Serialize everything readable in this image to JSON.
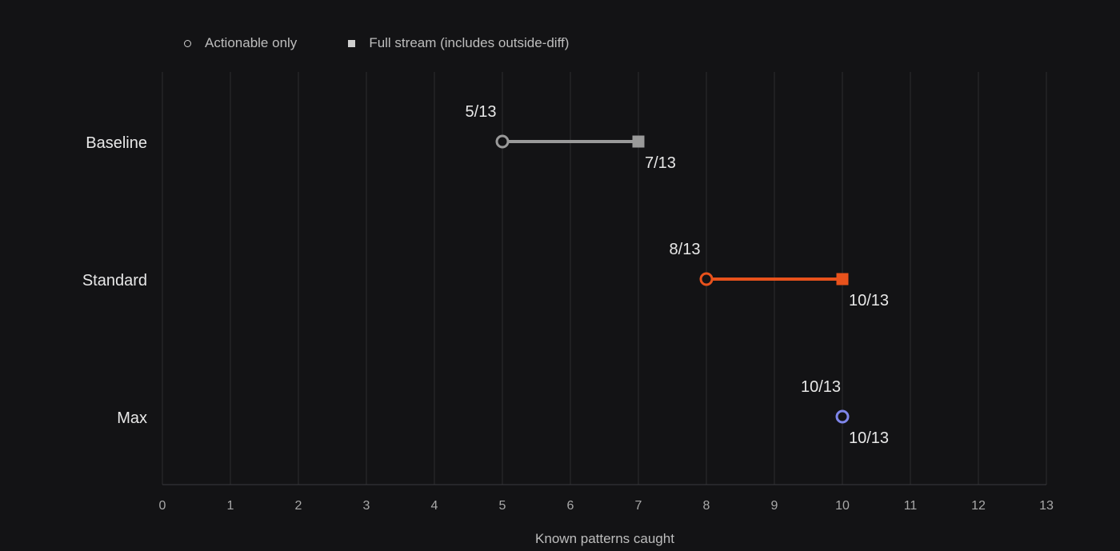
{
  "legend": {
    "actionable": "Actionable only",
    "full_stream": "Full stream (includes outside-diff)"
  },
  "chart_data": {
    "type": "dumbbell",
    "xlabel": "Known patterns caught",
    "xlim": [
      0,
      13
    ],
    "xticks": [
      0,
      1,
      2,
      3,
      4,
      5,
      6,
      7,
      8,
      9,
      10,
      11,
      12,
      13
    ],
    "grid": "vertical",
    "legend_position": "top-left",
    "series_names": [
      "Actionable only",
      "Full stream (includes outside-diff)"
    ],
    "rows": [
      {
        "category": "Baseline",
        "actionable": 5,
        "full_stream": 7,
        "actionable_label": "5/13",
        "full_stream_label": "7/13",
        "color": "#9a9a9a"
      },
      {
        "category": "Standard",
        "actionable": 8,
        "full_stream": 10,
        "actionable_label": "8/13",
        "full_stream_label": "10/13",
        "color": "#e8521c"
      },
      {
        "category": "Max",
        "actionable": 10,
        "full_stream": 10,
        "actionable_label": "10/13",
        "full_stream_label": "10/13",
        "color": "#7f86ea"
      }
    ]
  }
}
